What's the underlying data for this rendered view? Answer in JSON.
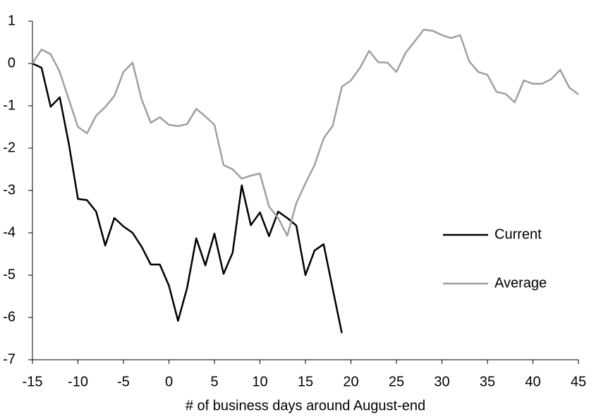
{
  "chart_data": {
    "type": "line",
    "x_label": "# of business days around August-end",
    "x": [
      -15,
      -14,
      -13,
      -12,
      -11,
      -10,
      -9,
      -8,
      -7,
      -6,
      -5,
      -4,
      -3,
      -2,
      -1,
      0,
      1,
      2,
      3,
      4,
      5,
      6,
      7,
      8,
      9,
      10,
      11,
      12,
      13,
      14,
      15,
      16,
      17,
      18,
      19,
      20,
      21,
      22,
      23,
      24,
      25,
      26,
      27,
      28,
      29,
      30,
      31,
      32,
      33,
      34,
      35,
      36,
      37,
      38,
      39,
      40,
      41,
      42,
      43,
      44,
      45
    ],
    "series": [
      {
        "name": "Current",
        "color": "#000000",
        "values": [
          0,
          -0.1,
          -1.02,
          -0.8,
          -1.9,
          -3.2,
          -3.23,
          -3.5,
          -4.3,
          -3.65,
          -3.85,
          -4.0,
          -4.33,
          -4.75,
          -4.75,
          -5.25,
          -6.08,
          -5.3,
          -4.13,
          -4.77,
          -4.02,
          -4.97,
          -4.47,
          -2.88,
          -3.82,
          -3.52,
          -4.08,
          -3.5,
          -3.65,
          -3.83,
          -5.0,
          -4.42,
          -4.27,
          -5.33,
          -6.37,
          null,
          null,
          null,
          null,
          null,
          null,
          null,
          null,
          null,
          null,
          null,
          null,
          null,
          null,
          null,
          null,
          null,
          null,
          null,
          null,
          null,
          null,
          null,
          null,
          null,
          null
        ]
      },
      {
        "name": "Average",
        "color": "#a0a0a0",
        "values": [
          0,
          0.33,
          0.22,
          -0.2,
          -0.85,
          -1.5,
          -1.65,
          -1.23,
          -1.03,
          -0.77,
          -0.2,
          0.02,
          -0.85,
          -1.4,
          -1.27,
          -1.45,
          -1.48,
          -1.43,
          -1.07,
          -1.25,
          -1.45,
          -2.4,
          -2.5,
          -2.72,
          -2.65,
          -2.6,
          -3.38,
          -3.65,
          -4.07,
          -3.3,
          -2.83,
          -2.4,
          -1.77,
          -1.47,
          -0.55,
          -0.4,
          -0.1,
          0.3,
          0.03,
          0.02,
          -0.2,
          0.25,
          0.52,
          0.8,
          0.77,
          0.67,
          0.6,
          0.67,
          0.05,
          -0.2,
          -0.27,
          -0.67,
          -0.72,
          -0.92,
          -0.4,
          -0.48,
          -0.48,
          -0.37,
          -0.15,
          -0.57,
          -0.73
        ]
      }
    ],
    "xlim": [
      -15,
      45
    ],
    "xticks": [
      -15,
      -10,
      -5,
      0,
      5,
      10,
      15,
      20,
      25,
      30,
      35,
      40,
      45
    ],
    "ylim": [
      -7,
      1
    ],
    "yticks": [
      -7,
      -6,
      -5,
      -4,
      -3,
      -2,
      -1,
      0,
      1
    ],
    "grid": false,
    "legend": "right"
  }
}
